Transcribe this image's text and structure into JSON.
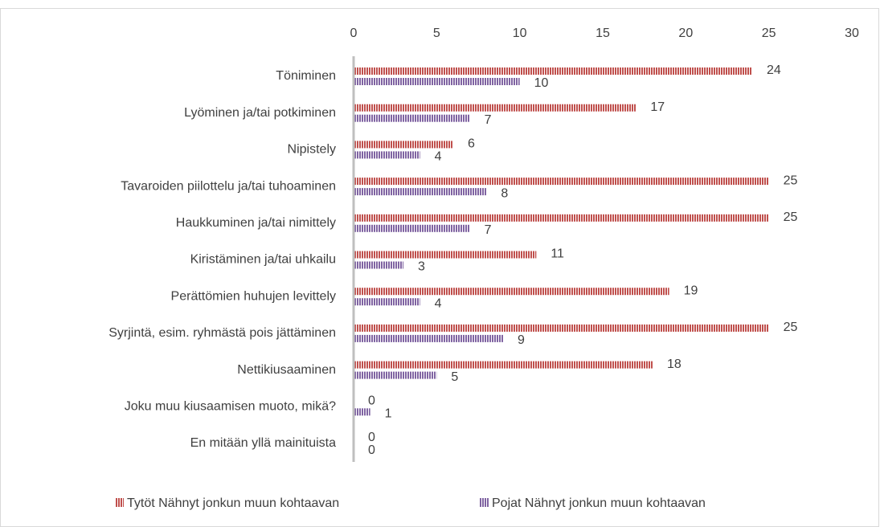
{
  "chart_data": {
    "type": "bar",
    "orientation": "horizontal",
    "categories": [
      "Töniminen",
      "Lyöminen ja/tai potkiminen",
      "Nipistely",
      "Tavaroiden piilottelu ja/tai tuhoaminen",
      "Haukkuminen ja/tai nimittely",
      "Kiristäminen ja/tai uhkailu",
      "Perättömien huhujen levittely",
      "Syrjintä, esim. ryhmästä pois jättäminen",
      "Nettikiusaaminen",
      "Joku muu kiusaamisen muoto, mikä?",
      "En mitään yllä mainituista"
    ],
    "series": [
      {
        "name": "Tytöt Nähnyt jonkun muun kohtaavan",
        "color": "#c0504d",
        "values": [
          24,
          17,
          6,
          25,
          25,
          11,
          19,
          25,
          18,
          0,
          0
        ]
      },
      {
        "name": "Pojat Nähnyt jonkun muun kohtaavan",
        "color": "#8064a2",
        "values": [
          10,
          7,
          4,
          8,
          7,
          3,
          4,
          9,
          5,
          1,
          0
        ]
      }
    ],
    "xlim": [
      0,
      30
    ],
    "xticks": [
      0,
      5,
      10,
      15,
      20,
      25,
      30
    ],
    "grid": false,
    "legend": "bottom"
  }
}
